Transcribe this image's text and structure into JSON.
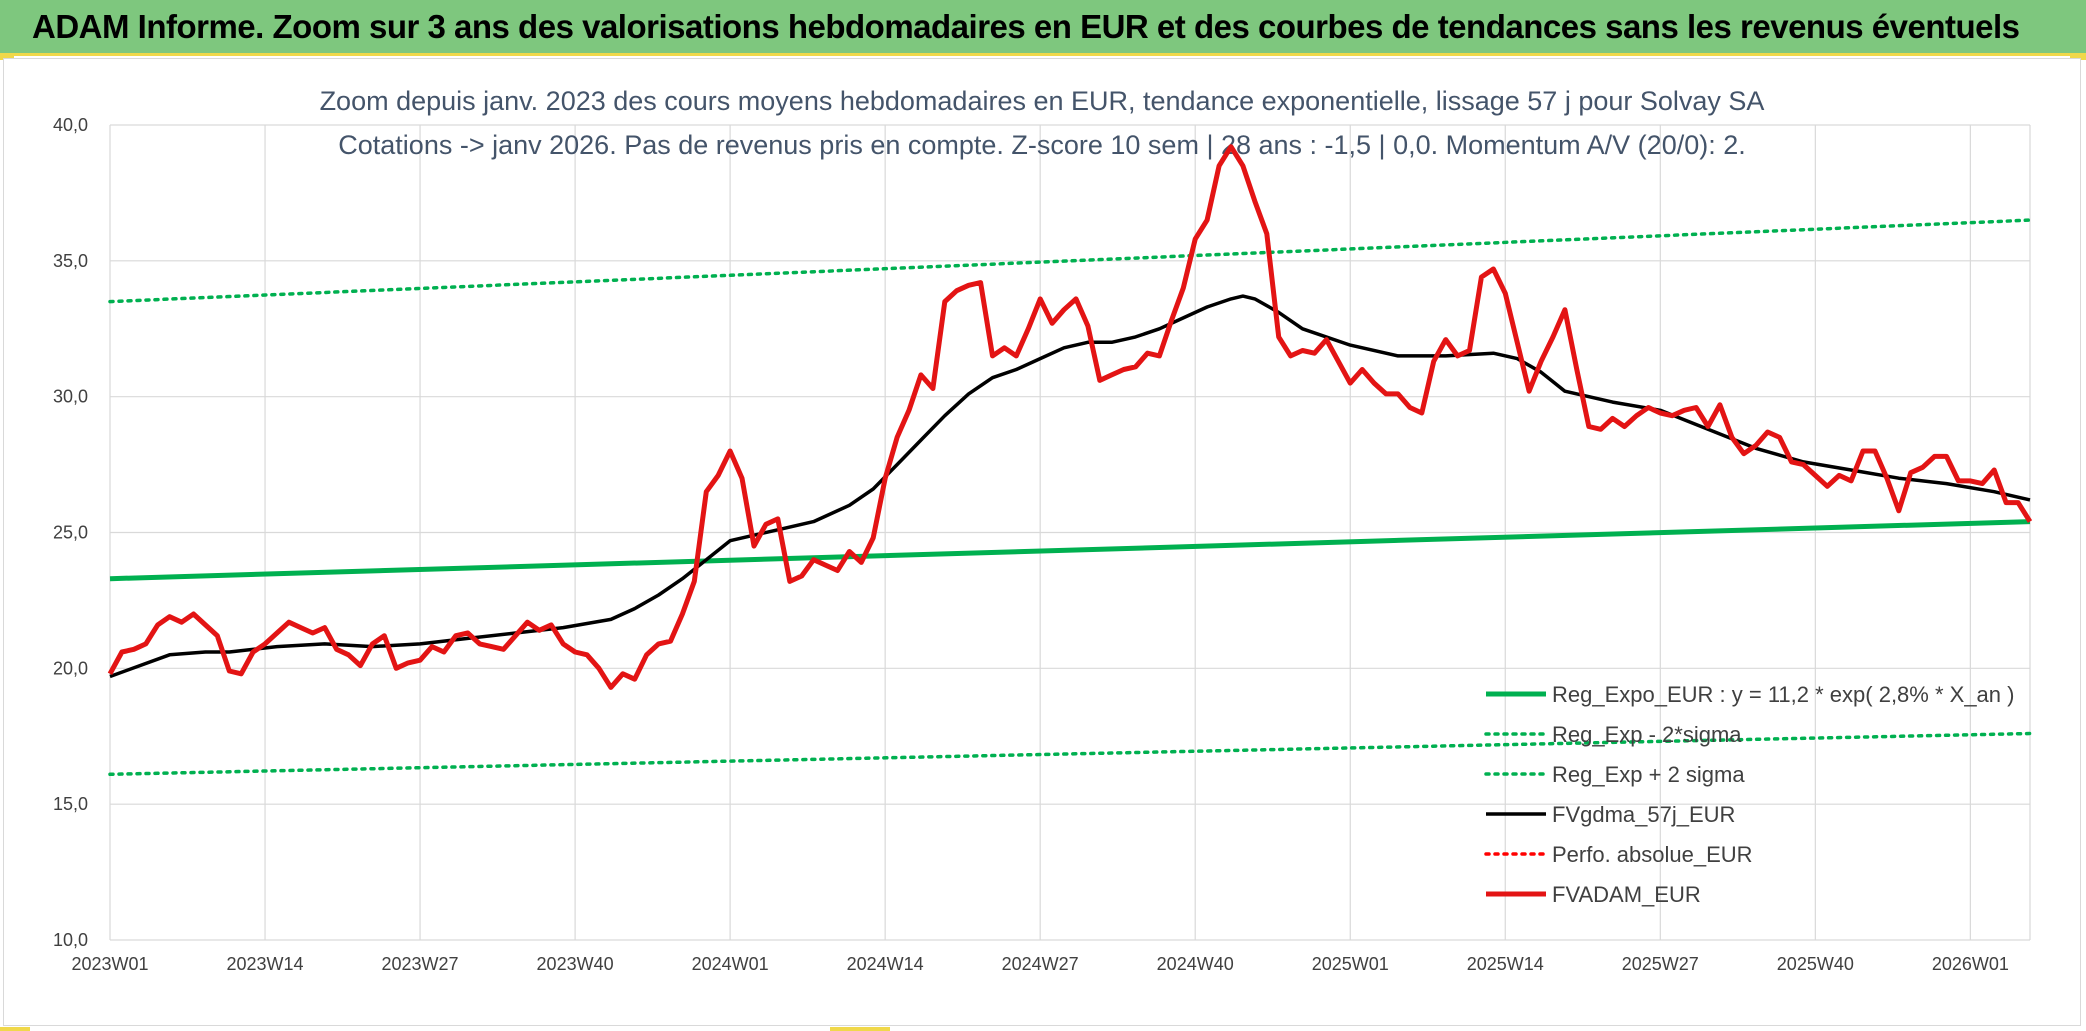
{
  "header": {
    "title": "ADAM Informe. Zoom sur 3 ans des valorisations hebdomadaires en EUR et des courbes de tendances sans les revenus éventuels"
  },
  "chart_data": {
    "type": "line",
    "title_line1": "Zoom depuis janv. 2023 des cours moyens hebdomadaires en EUR, tendance exponentielle, lissage 57 j pour Solvay SA",
    "title_line2": "Cotations -> janv 2026. Pas de revenus pris en compte. Z-score 10 sem | 28 ans : -1,5 | 0,0. Momentum A/V (20/0): 2.",
    "ylim": [
      10,
      40
    ],
    "y_ticks": [
      "10,0",
      "15,0",
      "20,0",
      "25,0",
      "30,0",
      "35,0",
      "40,0"
    ],
    "y_tick_values": [
      10,
      15,
      20,
      25,
      30,
      35,
      40
    ],
    "x_ticks": [
      "2023W01",
      "2023W14",
      "2023W27",
      "2023W40",
      "2024W01",
      "2024W14",
      "2024W27",
      "2024W40",
      "2025W01",
      "2025W14",
      "2025W27",
      "2025W40",
      "2026W01"
    ],
    "x_tick_index": [
      0,
      13,
      26,
      39,
      52,
      65,
      78,
      91,
      104,
      117,
      130,
      143,
      156
    ],
    "x_max_index": 161,
    "grid": true,
    "legend_position": "bottom-right",
    "series": [
      {
        "name": "Reg_Expo_EUR : y = 11,2 * exp( 2,8% *  X_an )",
        "color": "#00b050",
        "style": "solid-thick",
        "x": [
          0,
          161
        ],
        "values": [
          23.3,
          25.4
        ]
      },
      {
        "name": "Reg_Exp - 2*sigma",
        "color": "#00b050",
        "style": "dotted",
        "x": [
          0,
          161
        ],
        "values": [
          16.1,
          17.6
        ]
      },
      {
        "name": "Reg_Exp + 2 sigma",
        "color": "#00b050",
        "style": "dotted",
        "x": [
          0,
          161
        ],
        "values": [
          33.5,
          36.5
        ]
      },
      {
        "name": "FVgdma_57j_EUR",
        "color": "#000000",
        "style": "solid",
        "x": [
          0,
          5,
          8,
          10,
          14,
          18,
          22,
          26,
          30,
          34,
          38,
          42,
          44,
          46,
          48,
          50,
          52,
          54,
          56,
          59,
          62,
          64,
          66,
          68,
          70,
          72,
          74,
          76,
          78,
          80,
          82,
          84,
          86,
          88,
          90,
          92,
          94,
          95,
          96,
          98,
          100,
          104,
          108,
          112,
          116,
          118,
          120,
          122,
          126,
          130,
          134,
          138,
          142,
          146,
          150,
          154,
          158,
          161
        ],
        "values": [
          19.7,
          20.5,
          20.6,
          20.6,
          20.8,
          20.9,
          20.8,
          20.9,
          21.1,
          21.3,
          21.5,
          21.8,
          22.2,
          22.7,
          23.3,
          24.0,
          24.7,
          24.9,
          25.1,
          25.4,
          26.0,
          26.6,
          27.5,
          28.4,
          29.3,
          30.1,
          30.7,
          31.0,
          31.4,
          31.8,
          32.0,
          32.0,
          32.2,
          32.5,
          32.9,
          33.3,
          33.6,
          33.7,
          33.6,
          33.1,
          32.5,
          31.9,
          31.5,
          31.5,
          31.6,
          31.4,
          30.9,
          30.2,
          29.8,
          29.5,
          28.8,
          28.1,
          27.6,
          27.3,
          27.0,
          26.8,
          26.5,
          26.2
        ]
      },
      {
        "name": "Perfo. absolue_EUR",
        "color": "#ff0000",
        "style": "dotted",
        "x": [],
        "values": []
      },
      {
        "name": "FVADAM_EUR",
        "color": "#e31414",
        "style": "solid-thick",
        "x": [
          0,
          1,
          2,
          3,
          4,
          5,
          6,
          7,
          8,
          9,
          10,
          11,
          12,
          13,
          14,
          15,
          16,
          17,
          18,
          19,
          20,
          21,
          22,
          23,
          24,
          25,
          26,
          27,
          28,
          29,
          30,
          31,
          32,
          33,
          34,
          35,
          36,
          37,
          38,
          39,
          40,
          41,
          42,
          43,
          44,
          45,
          46,
          47,
          48,
          49,
          50,
          51,
          52,
          53,
          54,
          55,
          56,
          57,
          58,
          59,
          60,
          61,
          62,
          63,
          64,
          65,
          66,
          67,
          68,
          69,
          70,
          71,
          72,
          73,
          74,
          75,
          76,
          77,
          78,
          79,
          80,
          81,
          82,
          83,
          84,
          85,
          86,
          87,
          88,
          89,
          90,
          91,
          92,
          93,
          94,
          95,
          96,
          97,
          98,
          99,
          100,
          101,
          102,
          103,
          104,
          105,
          106,
          107,
          108,
          109,
          110,
          111,
          112,
          113,
          114,
          115,
          116,
          117,
          118,
          119,
          120,
          121,
          122,
          123,
          124,
          125,
          126,
          127,
          128,
          129,
          130,
          131,
          132,
          133,
          134,
          135,
          136,
          137,
          138,
          139,
          140,
          141,
          142,
          143,
          144,
          145,
          146,
          147,
          148,
          149,
          150,
          151,
          152,
          153,
          154,
          155,
          156,
          157,
          158,
          159,
          160,
          161
        ],
        "values": [
          19.8,
          20.6,
          20.7,
          20.9,
          21.6,
          21.9,
          21.7,
          22.0,
          21.6,
          21.2,
          19.9,
          19.8,
          20.6,
          20.9,
          21.3,
          21.7,
          21.5,
          21.3,
          21.5,
          20.7,
          20.5,
          20.1,
          20.9,
          21.2,
          20.0,
          20.2,
          20.3,
          20.8,
          20.6,
          21.2,
          21.3,
          20.9,
          20.8,
          20.7,
          21.2,
          21.7,
          21.4,
          21.6,
          20.9,
          20.6,
          20.5,
          20.0,
          19.3,
          19.8,
          19.6,
          20.5,
          20.9,
          21.0,
          22.0,
          23.2,
          26.5,
          27.1,
          28.0,
          27.0,
          24.5,
          25.3,
          25.5,
          23.2,
          23.4,
          24.0,
          23.8,
          23.6,
          24.3,
          23.9,
          24.8,
          27.0,
          28.5,
          29.5,
          30.8,
          30.3,
          33.5,
          33.9,
          34.1,
          34.2,
          31.5,
          31.8,
          31.5,
          32.5,
          33.6,
          32.7,
          33.2,
          33.6,
          32.6,
          30.6,
          30.8,
          31.0,
          31.1,
          31.6,
          31.5,
          32.8,
          34.0,
          35.8,
          36.5,
          38.5,
          39.2,
          38.5,
          37.2,
          36.0,
          32.2,
          31.5,
          31.7,
          31.6,
          32.1,
          31.3,
          30.5,
          31.0,
          30.5,
          30.1,
          30.1,
          29.6,
          29.4,
          31.3,
          32.1,
          31.5,
          31.7,
          34.4,
          34.7,
          33.8,
          32.0,
          30.2,
          31.3,
          32.2,
          33.2,
          31.0,
          28.9,
          28.8,
          29.2,
          28.9,
          29.3,
          29.6,
          29.4,
          29.3,
          29.5,
          29.6,
          28.9,
          29.7,
          28.5,
          27.9,
          28.2,
          28.7,
          28.5,
          27.6,
          27.5,
          27.1,
          26.7,
          27.1,
          26.9,
          28.0,
          28.0,
          27.0,
          25.8,
          27.2,
          27.4,
          27.8,
          27.8,
          26.9,
          26.9,
          26.8,
          27.3,
          26.1,
          26.1,
          25.4
        ]
      }
    ]
  }
}
